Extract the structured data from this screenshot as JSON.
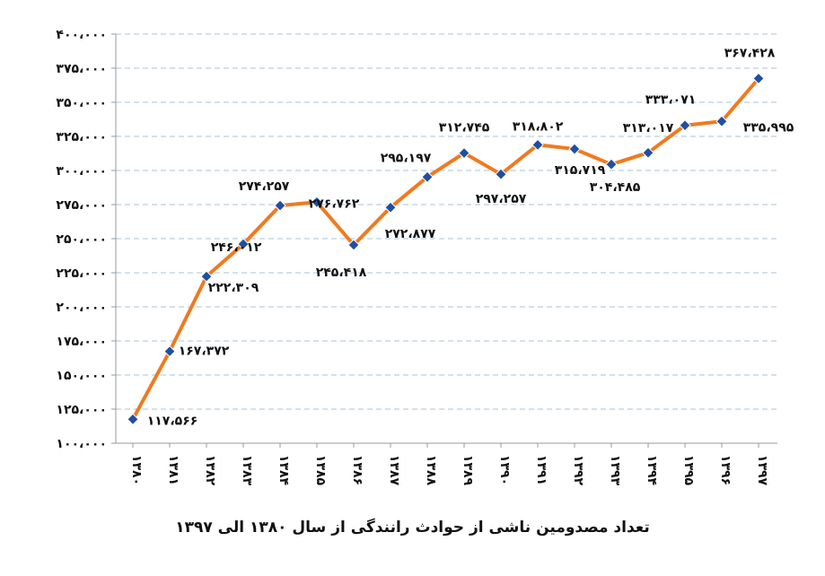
{
  "caption": "تعداد مصدومین ناشی از حوادث رانندگی  از سال ۱۳۸۰ الی ۱۳۹۷",
  "colors": {
    "line": "#f07a1f",
    "marker": "#1f4fa0",
    "grid": "#a9c3d9",
    "axis": "#999999"
  },
  "chart_data": {
    "type": "line",
    "title": "",
    "xlabel": "",
    "ylabel": "",
    "ylim": [
      100000,
      400000
    ],
    "ytick_step": 25000,
    "ytick_labels": [
      "۱۰۰،۰۰۰",
      "۱۲۵،۰۰۰",
      "۱۵۰،۰۰۰",
      "۱۷۵،۰۰۰",
      "۲۰۰،۰۰۰",
      "۲۲۵،۰۰۰",
      "۲۵۰،۰۰۰",
      "۲۷۵،۰۰۰",
      "۳۰۰،۰۰۰",
      "۳۲۵،۰۰۰",
      "۳۵۰،۰۰۰",
      "۳۷۵،۰۰۰",
      "۴۰۰،۰۰۰"
    ],
    "grid": "horizontal dashed",
    "categories": [
      "۱۳۸۰",
      "۱۳۸۱",
      "۱۳۸۲",
      "۱۳۸۳",
      "۱۳۸۴",
      "۱۳۸۵",
      "۱۳۸۶",
      "۱۳۸۷",
      "۱۳۸۸",
      "۱۳۸۹",
      "۱۳۹۰",
      "۱۳۹۱",
      "۱۳۹۲",
      "۱۳۹۳",
      "۱۳۹۴",
      "۱۳۹۵",
      "۱۳۹۶",
      "۱۳۹۷"
    ],
    "values": [
      117566,
      167372,
      222309,
      246012,
      274257,
      276762,
      245418,
      272877,
      295197,
      312745,
      297257,
      318802,
      315719,
      304485,
      313017,
      333071,
      335995,
      367428
    ],
    "data_labels": [
      "۱۱۷،۵۶۶",
      "۱۶۷،۳۷۲",
      "۲۲۲،۳۰۹",
      "۲۴۶،۰۱۲",
      "۲۷۴،۲۵۷",
      "۲۷۶،۷۶۲",
      "۲۴۵،۴۱۸",
      "۲۷۲،۸۷۷",
      "۲۹۵،۱۹۷",
      "۳۱۲،۷۴۵",
      "۲۹۷،۲۵۷",
      "۳۱۸،۸۰۲",
      "۳۱۵،۷۱۹",
      "۳۰۴،۴۸۵",
      "۳۱۳،۰۱۷",
      "۳۳۳،۰۷۱",
      "۳۳۵،۹۹۵",
      "۳۶۷،۴۲۸"
    ],
    "series": [
      {
        "values": [
          117566,
          167372,
          222309,
          246012,
          274257,
          276762,
          245418,
          272877,
          295197,
          312745,
          297257,
          318802,
          315719,
          304485,
          313017,
          333071,
          335995,
          367428
        ]
      }
    ]
  }
}
